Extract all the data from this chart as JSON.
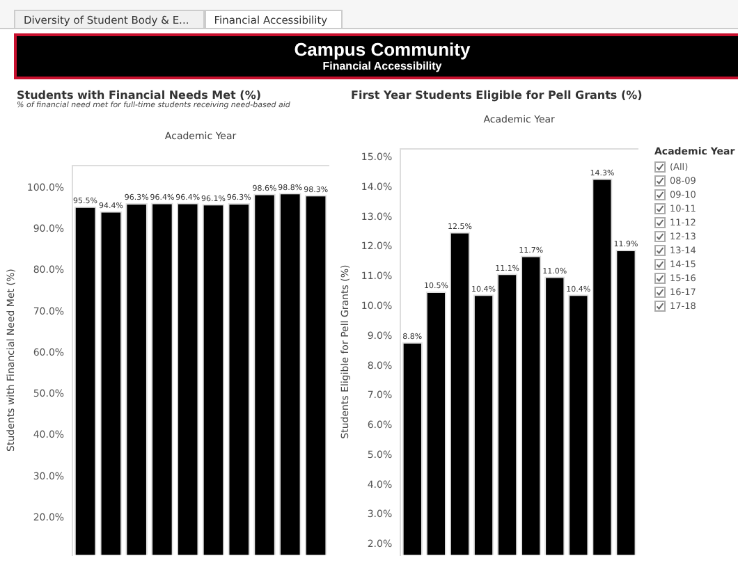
{
  "chart_data": [
    {
      "type": "other",
      "title": "Campus Community",
      "subtitle": "Financial Accessibility",
      "annotations": [
        "Diversity of Student Body & E...",
        "Financial Accessibility"
      ]
    },
    {
      "type": "bar",
      "title": "Students with Financial Needs Met (%)",
      "subtitle": "% of financial need met for full-time students receiving need-based aid",
      "xlabel": "Academic Year",
      "ylabel": "Students with Financial Need Met (%)",
      "categories": [
        null,
        null,
        null,
        null,
        null,
        null,
        null,
        null,
        null,
        null
      ],
      "color": "#000000",
      "values": [
        95.5,
        94.4,
        96.3,
        96.4,
        96.4,
        96.1,
        96.3,
        98.6,
        98.8,
        98.3
      ],
      "value_labels": [
        "95.5%",
        "94.4%",
        "96.3%",
        "96.4%",
        "96.4%",
        "96.1%",
        "96.3%",
        "98.6%",
        "98.8%",
        "98.3%"
      ],
      "ylim": [
        11,
        105.5
      ],
      "yticks": [
        {
          "value": 20,
          "label": "20.0%"
        },
        {
          "value": 30,
          "label": "30.0%"
        },
        {
          "value": 40,
          "label": "40.0%"
        },
        {
          "value": 50,
          "label": "50.0%"
        },
        {
          "value": 60,
          "label": "60.0%"
        },
        {
          "value": 70,
          "label": "70.0%"
        },
        {
          "value": 80,
          "label": "80.0%"
        },
        {
          "value": 90,
          "label": "90.0%"
        },
        {
          "value": 100,
          "label": "100.0%"
        }
      ],
      "grid": false,
      "legend": false
    },
    {
      "type": "bar",
      "title": "First Year Students Eligible for Pell Grants (%)",
      "xlabel": "Academic Year",
      "ylabel": "Students Eligible for Pell Grants (%)",
      "categories": [
        null,
        null,
        null,
        null,
        null,
        null,
        null,
        null,
        null,
        null
      ],
      "color": "#000000",
      "values": [
        8.8,
        10.5,
        12.5,
        10.4,
        11.1,
        11.7,
        11.0,
        10.4,
        14.3,
        11.9
      ],
      "value_labels": [
        "8.8%",
        "10.5%",
        "12.5%",
        "10.4%",
        "11.1%",
        "11.7%",
        "11.0%",
        "10.4%",
        "14.3%",
        "11.9%"
      ],
      "ylim": [
        1.65,
        15.3
      ],
      "yticks": [
        {
          "value": 2,
          "label": "2.0%"
        },
        {
          "value": 3,
          "label": "3.0%"
        },
        {
          "value": 4,
          "label": "4.0%"
        },
        {
          "value": 5,
          "label": "5.0%"
        },
        {
          "value": 6,
          "label": "6.0%"
        },
        {
          "value": 7,
          "label": "7.0%"
        },
        {
          "value": 8,
          "label": "8.0%"
        },
        {
          "value": 9,
          "label": "9.0%"
        },
        {
          "value": 10,
          "label": "10.0%"
        },
        {
          "value": 11,
          "label": "11.0%"
        },
        {
          "value": 12,
          "label": "12.0%"
        },
        {
          "value": 13,
          "label": "13.0%"
        },
        {
          "value": 14,
          "label": "14.0%"
        },
        {
          "value": 15,
          "label": "15.0%"
        }
      ],
      "grid": false,
      "legend": false
    },
    {
      "type": "other",
      "title": "Academic Year",
      "annotations": [
        "(All)",
        "08-09",
        "09-10",
        "10-11",
        "11-12",
        "12-13",
        "13-14",
        "14-15",
        "15-16",
        "16-17",
        "17-18"
      ]
    }
  ]
}
